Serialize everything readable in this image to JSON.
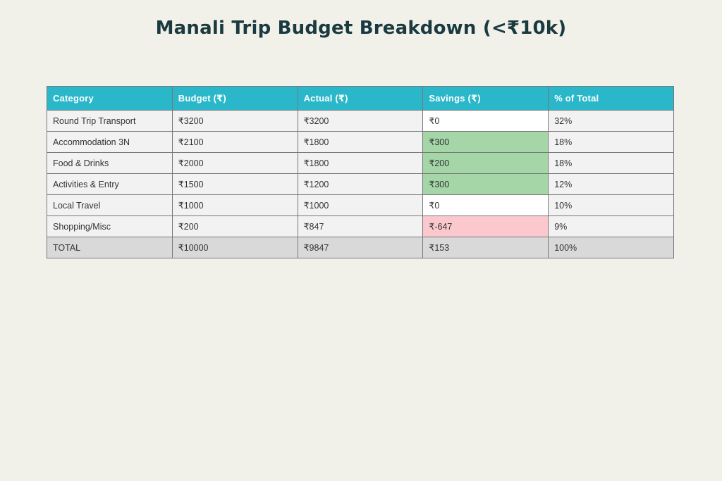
{
  "colors": {
    "page_bg": "#f1f1ea",
    "title_text": "#1a3a40",
    "header_bg": "#2ab7ca",
    "header_text": "#ffffff",
    "row_bg": "#f2f2f2",
    "total_row_bg": "#d9d9d9",
    "savings_zero_bg": "#ffffff",
    "savings_positive_bg": "#a5d6a7",
    "savings_negative_bg": "#fbc8ce",
    "border": "#777777",
    "text": "#333333"
  },
  "chart_data": {
    "type": "table",
    "title": "Manali Trip Budget Breakdown (<₹10k)",
    "columns": [
      "Category",
      "Budget (₹)",
      "Actual (₹)",
      "Savings (₹)",
      "% of Total"
    ],
    "rows": [
      {
        "category": "Round Trip Transport",
        "budget": "₹3200",
        "actual": "₹3200",
        "savings": "₹0",
        "percent": "32%",
        "savings_state": "zero",
        "is_total": false
      },
      {
        "category": "Accommodation 3N",
        "budget": "₹2100",
        "actual": "₹1800",
        "savings": "₹300",
        "percent": "18%",
        "savings_state": "positive",
        "is_total": false
      },
      {
        "category": "Food & Drinks",
        "budget": "₹2000",
        "actual": "₹1800",
        "savings": "₹200",
        "percent": "18%",
        "savings_state": "positive",
        "is_total": false
      },
      {
        "category": "Activities & Entry",
        "budget": "₹1500",
        "actual": "₹1200",
        "savings": "₹300",
        "percent": "12%",
        "savings_state": "positive",
        "is_total": false
      },
      {
        "category": "Local Travel",
        "budget": "₹1000",
        "actual": "₹1000",
        "savings": "₹0",
        "percent": "10%",
        "savings_state": "zero",
        "is_total": false
      },
      {
        "category": "Shopping/Misc",
        "budget": "₹200",
        "actual": "₹847",
        "savings": "₹-647",
        "percent": "9%",
        "savings_state": "negative",
        "is_total": false
      },
      {
        "category": "TOTAL",
        "budget": "₹10000",
        "actual": "₹9847",
        "savings": "₹153",
        "percent": "100%",
        "savings_state": "total",
        "is_total": true
      }
    ]
  }
}
